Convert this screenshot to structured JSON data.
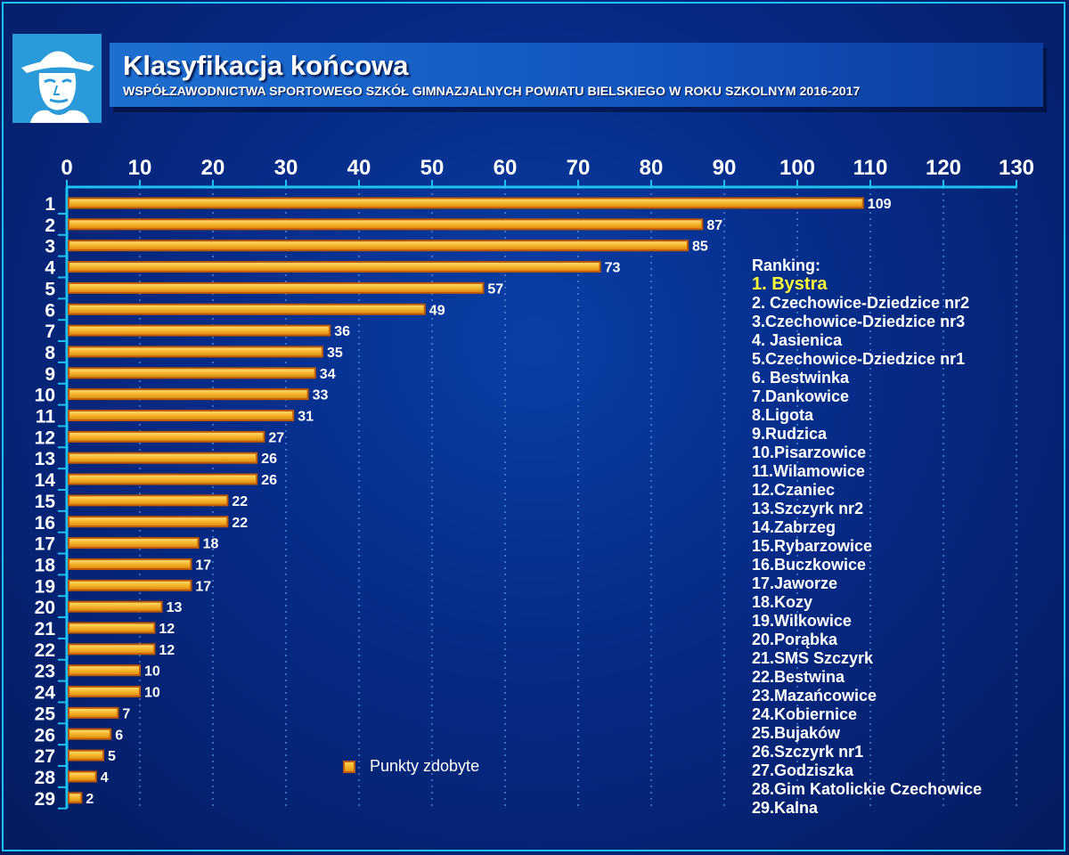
{
  "header": {
    "title": "Klasyfikacja końcowa",
    "subtitle": "WSPÓŁZAWODNICTWA SPORTOWEGO SZKÓŁ GIMNAZJALNYCH POWIATU BIELSKIEGO W ROKU SZKOLNYM 2016-2017"
  },
  "colors": {
    "background": "#062a86",
    "frame": "#1ec2f0",
    "bar_fill": "#f5b52a",
    "bar_border": "#c05a00",
    "highlight": "#ffff33"
  },
  "chart_data": {
    "type": "bar",
    "orientation": "horizontal",
    "xlim": [
      0,
      130
    ],
    "xticks": [
      0,
      10,
      20,
      30,
      40,
      50,
      60,
      70,
      80,
      90,
      100,
      110,
      120,
      130
    ],
    "grid": true,
    "legend_position": "bottom-center",
    "categories": [
      "1",
      "2",
      "3",
      "4",
      "5",
      "6",
      "7",
      "8",
      "9",
      "10",
      "11",
      "12",
      "13",
      "14",
      "15",
      "16",
      "17",
      "18",
      "19",
      "20",
      "21",
      "22",
      "23",
      "24",
      "25",
      "26",
      "27",
      "28",
      "29"
    ],
    "series": [
      {
        "name": "Punkty zdobyte",
        "values": [
          109,
          87,
          85,
          73,
          57,
          49,
          36,
          35,
          34,
          33,
          31,
          27,
          26,
          26,
          22,
          22,
          18,
          17,
          17,
          13,
          12,
          12,
          10,
          10,
          7,
          6,
          5,
          4,
          2
        ]
      }
    ]
  },
  "ranking": {
    "heading": "Ranking:",
    "items": [
      "1. Bystra",
      "2. Czechowice-Dziedzice nr2",
      "3.Czechowice-Dziedzice nr3",
      "4. Jasienica",
      "5.Czechowice-Dziedzice nr1",
      "6. Bestwinka",
      "7.Dankowice",
      "8.Ligota",
      "9.Rudzica",
      "10.Pisarzowice",
      "11.Wilamowice",
      "12.Czaniec",
      "13.Szczyrk nr2",
      "14.Zabrzeg",
      "15.Rybarzowice",
      "16.Buczkowice",
      "17.Jaworze",
      "18.Kozy",
      "19.Wilkowice",
      "20.Porąbka",
      "21.SMS Szczyrk",
      "22.Bestwina",
      "23.Mazańcowice",
      "24.Kobiernice",
      "25.Bujaków",
      "26.Szczyrk nr1",
      "27.Godziszka",
      "28.Gim Katolickie Czechowice",
      "29.Kalna"
    ]
  },
  "icons": {
    "logo": "portrait-logo-icon",
    "legend": "bar-swatch-icon"
  }
}
